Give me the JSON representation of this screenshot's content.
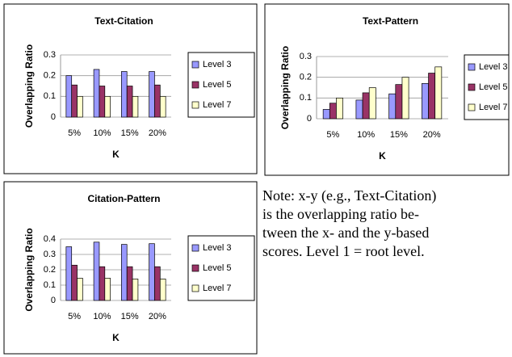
{
  "chart_data": [
    {
      "type": "bar",
      "title": "Text-Citation",
      "xlabel": "K",
      "ylabel": "Overlapping Ratio",
      "categories": [
        "5%",
        "10%",
        "15%",
        "20%"
      ],
      "series": [
        {
          "name": "Level 3",
          "color": "#9999ff",
          "values": [
            0.2,
            0.23,
            0.22,
            0.22
          ]
        },
        {
          "name": "Level 5",
          "color": "#993366",
          "values": [
            0.155,
            0.15,
            0.15,
            0.155
          ]
        },
        {
          "name": "Level 7",
          "color": "#ffffcc",
          "values": [
            0.1,
            0.1,
            0.1,
            0.1
          ]
        }
      ],
      "ylim": [
        0,
        0.3
      ],
      "yticks": [
        0,
        0.1,
        0.2,
        0.3
      ],
      "grid": true,
      "legend": "right"
    },
    {
      "type": "bar",
      "title": "Text-Pattern",
      "xlabel": "K",
      "ylabel": "Overlapping Ratio",
      "categories": [
        "5%",
        "10%",
        "15%",
        "20%"
      ],
      "series": [
        {
          "name": "Level 3",
          "color": "#9999ff",
          "values": [
            0.045,
            0.09,
            0.12,
            0.17
          ]
        },
        {
          "name": "Level 5",
          "color": "#993366",
          "values": [
            0.075,
            0.125,
            0.165,
            0.22
          ]
        },
        {
          "name": "Level 7",
          "color": "#ffffcc",
          "values": [
            0.1,
            0.15,
            0.2,
            0.25
          ]
        }
      ],
      "ylim": [
        0,
        0.3
      ],
      "yticks": [
        0,
        0.1,
        0.2,
        0.3
      ],
      "grid": true,
      "legend": "right"
    },
    {
      "type": "bar",
      "title": "Citation-Pattern",
      "xlabel": "K",
      "ylabel": "Overlapping Ratio",
      "categories": [
        "5%",
        "10%",
        "15%",
        "20%"
      ],
      "series": [
        {
          "name": "Level 3",
          "color": "#9999ff",
          "values": [
            0.35,
            0.38,
            0.365,
            0.37
          ]
        },
        {
          "name": "Level 5",
          "color": "#993366",
          "values": [
            0.23,
            0.22,
            0.22,
            0.22
          ]
        },
        {
          "name": "Level 7",
          "color": "#ffffcc",
          "values": [
            0.145,
            0.145,
            0.14,
            0.14
          ]
        }
      ],
      "ylim": [
        0,
        0.4
      ],
      "yticks": [
        0,
        0.1,
        0.2,
        0.3,
        0.4
      ],
      "grid": true,
      "legend": "right"
    }
  ],
  "note": [
    "Note: x-y (e.g., Text-Citation)",
    "is the overlapping ratio be-",
    "tween the x- and the y-based",
    "scores. Level 1 = root level."
  ]
}
